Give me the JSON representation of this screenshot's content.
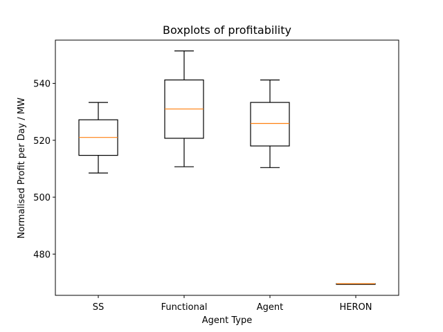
{
  "chart_data": {
    "type": "boxplot",
    "title": "Boxplots of profitability",
    "xlabel": "Agent Type",
    "ylabel": "Normalised Profit per Day / MW",
    "ylim": [
      465.5,
      555.2
    ],
    "yticks": [
      480,
      500,
      520,
      540
    ],
    "grid": false,
    "categories": [
      "SS",
      "Functional",
      "Agent",
      "HERON"
    ],
    "boxes": [
      {
        "label": "SS",
        "whisker_low": 508.5,
        "q1": 514.7,
        "median": 521.0,
        "q3": 527.2,
        "whisker_high": 533.3
      },
      {
        "label": "Functional",
        "whisker_low": 510.7,
        "q1": 520.7,
        "median": 531.0,
        "q3": 541.2,
        "whisker_high": 551.4
      },
      {
        "label": "Agent",
        "whisker_low": 510.4,
        "q1": 518.0,
        "median": 525.9,
        "q3": 533.3,
        "whisker_high": 541.2
      },
      {
        "label": "HERON",
        "whisker_low": 469.6,
        "q1": 469.6,
        "median": 469.6,
        "q3": 469.6,
        "whisker_high": 469.6
      }
    ],
    "colors": {
      "box": "#000000",
      "median": "#ff7f0e"
    }
  }
}
